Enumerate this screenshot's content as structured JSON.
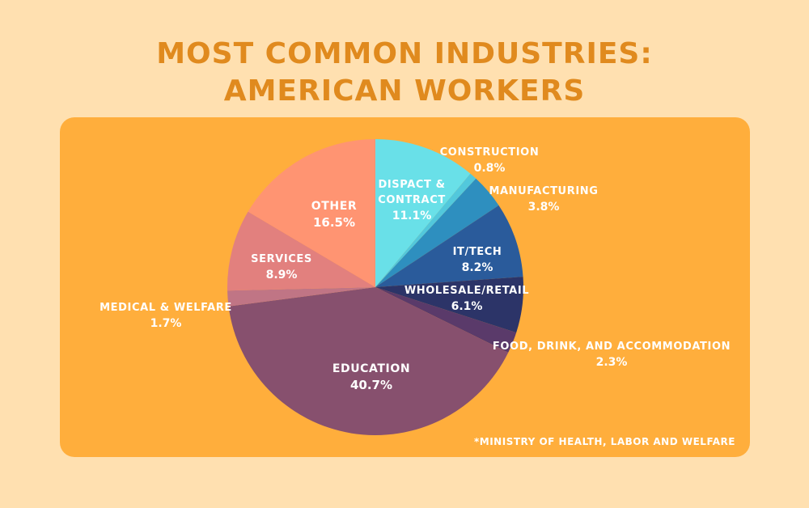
{
  "title_line1": "MOST COMMON INDUSTRIES:",
  "title_line2": "AMERICAN WORKERS",
  "source": "*MINISTRY OF HEALTH, LABOR AND WELFARE",
  "chart_data": {
    "type": "pie",
    "title": "MOST COMMON INDUSTRIES: AMERICAN WORKERS",
    "unit": "%",
    "slices": [
      {
        "label": "DISPACT & CONTRACT",
        "value": 11.1,
        "value_label": "11.1%",
        "color": "#69e0e8"
      },
      {
        "label": "CONSTRUCTION",
        "value": 0.8,
        "value_label": "0.8%",
        "color": "#52c8dc"
      },
      {
        "label": "MANUFACTURING",
        "value": 3.8,
        "value_label": "3.8%",
        "color": "#2e8fbf"
      },
      {
        "label": "IT/TECH",
        "value": 8.2,
        "value_label": "8.2%",
        "color": "#2a5b9b"
      },
      {
        "label": "WHOLESALE/RETAIL",
        "value": 6.1,
        "value_label": "6.1%",
        "color": "#2c3468"
      },
      {
        "label": "FOOD, DRINK, AND ACCOMMODATION",
        "value": 2.3,
        "value_label": "2.3%",
        "color": "#5a3a6a"
      },
      {
        "label": "EDUCATION",
        "value": 40.7,
        "value_label": "40.7%",
        "color": "#87506e"
      },
      {
        "label": "MEDICAL & WELFARE",
        "value": 1.7,
        "value_label": "1.7%",
        "color": "#c07585"
      },
      {
        "label": "SERVICES",
        "value": 8.9,
        "value_label": "8.9%",
        "color": "#e2807e"
      },
      {
        "label": "OTHER",
        "value": 16.5,
        "value_label": "16.5%",
        "color": "#ff9472"
      }
    ]
  }
}
